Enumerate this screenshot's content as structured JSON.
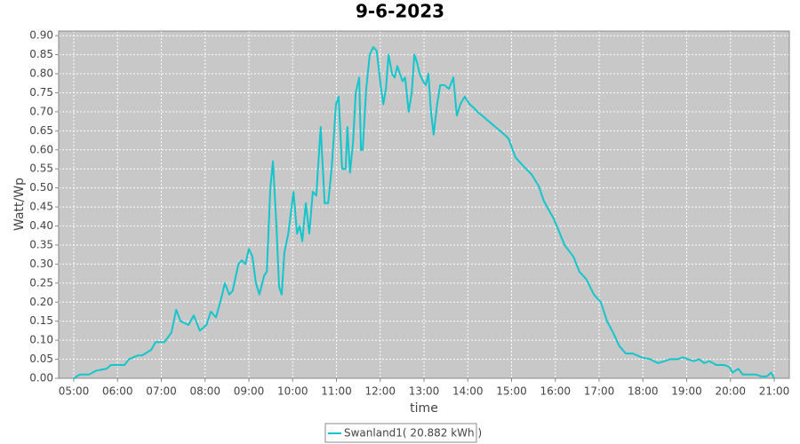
{
  "chart_data": {
    "type": "line",
    "title": "9-6-2023",
    "x_label": "time",
    "y_label": "Watt/Wp",
    "x": [
      5.0,
      5.14,
      5.35,
      5.51,
      5.75,
      5.85,
      6.16,
      6.26,
      6.46,
      6.56,
      6.77,
      6.87,
      7.07,
      7.23,
      7.34,
      7.44,
      7.62,
      7.74,
      7.88,
      8.03,
      8.13,
      8.25,
      8.39,
      8.45,
      8.55,
      8.63,
      8.76,
      8.84,
      8.92,
      9.0,
      9.08,
      9.16,
      9.24,
      9.35,
      9.41,
      9.49,
      9.55,
      9.63,
      9.69,
      9.75,
      9.81,
      9.9,
      10.02,
      10.1,
      10.16,
      10.22,
      10.3,
      10.38,
      10.46,
      10.54,
      10.64,
      10.73,
      10.81,
      10.89,
      10.99,
      11.05,
      11.13,
      11.21,
      11.25,
      11.31,
      11.38,
      11.44,
      11.52,
      11.56,
      11.6,
      11.68,
      11.76,
      11.84,
      11.92,
      12.01,
      12.07,
      12.13,
      12.19,
      12.27,
      12.33,
      12.39,
      12.45,
      12.51,
      12.57,
      12.65,
      12.72,
      12.78,
      12.84,
      12.9,
      12.98,
      13.04,
      13.1,
      13.16,
      13.22,
      13.3,
      13.37,
      13.47,
      13.57,
      13.67,
      13.75,
      13.83,
      13.93,
      14.04,
      14.14,
      14.22,
      14.38,
      14.58,
      14.79,
      14.93,
      15.09,
      15.29,
      15.46,
      15.62,
      15.74,
      15.86,
      15.96,
      16.07,
      16.21,
      16.41,
      16.55,
      16.71,
      16.88,
      17.04,
      17.18,
      17.32,
      17.46,
      17.61,
      17.77,
      17.97,
      18.17,
      18.34,
      18.5,
      18.62,
      18.79,
      18.91,
      19.03,
      19.16,
      19.28,
      19.4,
      19.52,
      19.68,
      19.85,
      19.97,
      20.05,
      20.18,
      20.28,
      20.42,
      20.58,
      20.7,
      20.83,
      20.93,
      21.0
    ],
    "series": [
      {
        "name": "Swanland1( 20.882 kWh )",
        "color": "#12c6cc",
        "values": [
          0.0,
          0.01,
          0.01,
          0.02,
          0.025,
          0.035,
          0.035,
          0.05,
          0.06,
          0.06,
          0.075,
          0.095,
          0.095,
          0.12,
          0.18,
          0.15,
          0.14,
          0.165,
          0.125,
          0.14,
          0.175,
          0.16,
          0.22,
          0.25,
          0.22,
          0.23,
          0.3,
          0.31,
          0.3,
          0.34,
          0.32,
          0.25,
          0.22,
          0.27,
          0.28,
          0.5,
          0.57,
          0.4,
          0.24,
          0.22,
          0.33,
          0.38,
          0.49,
          0.38,
          0.4,
          0.36,
          0.46,
          0.38,
          0.49,
          0.48,
          0.66,
          0.46,
          0.46,
          0.55,
          0.72,
          0.74,
          0.55,
          0.55,
          0.66,
          0.54,
          0.62,
          0.75,
          0.79,
          0.6,
          0.6,
          0.76,
          0.85,
          0.87,
          0.86,
          0.77,
          0.72,
          0.76,
          0.85,
          0.8,
          0.79,
          0.82,
          0.8,
          0.78,
          0.79,
          0.7,
          0.75,
          0.85,
          0.83,
          0.8,
          0.78,
          0.77,
          0.8,
          0.7,
          0.64,
          0.72,
          0.77,
          0.77,
          0.76,
          0.79,
          0.69,
          0.72,
          0.74,
          0.72,
          0.71,
          0.7,
          0.685,
          0.665,
          0.645,
          0.63,
          0.58,
          0.555,
          0.535,
          0.505,
          0.465,
          0.44,
          0.42,
          0.39,
          0.35,
          0.32,
          0.28,
          0.26,
          0.22,
          0.2,
          0.15,
          0.12,
          0.085,
          0.065,
          0.065,
          0.055,
          0.05,
          0.04,
          0.045,
          0.05,
          0.05,
          0.055,
          0.05,
          0.045,
          0.05,
          0.04,
          0.045,
          0.035,
          0.035,
          0.03,
          0.015,
          0.025,
          0.01,
          0.01,
          0.01,
          0.005,
          0.005,
          0.015,
          0.0
        ]
      }
    ],
    "xlim": [
      4.655,
      21.345
    ],
    "ylim": [
      0,
      0.912
    ],
    "xticks": [
      {
        "value": 5,
        "label": "05:00"
      },
      {
        "value": 6,
        "label": "06:00"
      },
      {
        "value": 7,
        "label": "07:00"
      },
      {
        "value": 8,
        "label": "08:00"
      },
      {
        "value": 9,
        "label": "09:00"
      },
      {
        "value": 10,
        "label": "10:00"
      },
      {
        "value": 11,
        "label": "11:00"
      },
      {
        "value": 12,
        "label": "12:00"
      },
      {
        "value": 13,
        "label": "13:00"
      },
      {
        "value": 14,
        "label": "14:00"
      },
      {
        "value": 15,
        "label": "15:00"
      },
      {
        "value": 16,
        "label": "16:00"
      },
      {
        "value": 17,
        "label": "17:00"
      },
      {
        "value": 18,
        "label": "18:00"
      },
      {
        "value": 19,
        "label": "19:00"
      },
      {
        "value": 20,
        "label": "20:00"
      },
      {
        "value": 21,
        "label": "21:00"
      }
    ],
    "yticks": [
      {
        "value": 0,
        "label": "0.00"
      },
      {
        "value": 0.05,
        "label": "0.05"
      },
      {
        "value": 0.1,
        "label": "0.10"
      },
      {
        "value": 0.15,
        "label": "0.15"
      },
      {
        "value": 0.2,
        "label": "0.20"
      },
      {
        "value": 0.25,
        "label": "0.25"
      },
      {
        "value": 0.3,
        "label": "0.30"
      },
      {
        "value": 0.35,
        "label": "0.35"
      },
      {
        "value": 0.4,
        "label": "0.40"
      },
      {
        "value": 0.45,
        "label": "0.45"
      },
      {
        "value": 0.5,
        "label": "0.50"
      },
      {
        "value": 0.55,
        "label": "0.55"
      },
      {
        "value": 0.6,
        "label": "0.60"
      },
      {
        "value": 0.65,
        "label": "0.65"
      },
      {
        "value": 0.7,
        "label": "0.70"
      },
      {
        "value": 0.75,
        "label": "0.75"
      },
      {
        "value": 0.8,
        "label": "0.80"
      },
      {
        "value": 0.85,
        "label": "0.85"
      },
      {
        "value": 0.9,
        "label": "0.90"
      }
    ],
    "grid": true,
    "plot_background": "#c8c8c8",
    "legend": "bottom"
  }
}
